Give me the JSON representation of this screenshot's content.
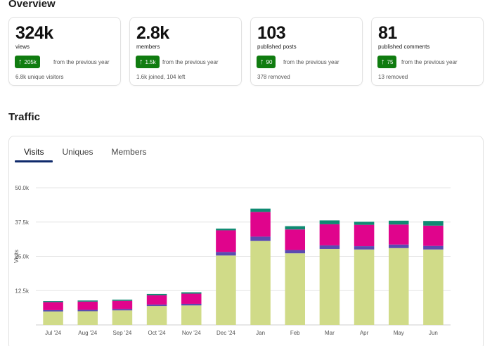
{
  "overview": {
    "title": "Overview",
    "cards": [
      {
        "value": "324k",
        "label": "views",
        "badge": "205k",
        "trend_text": "from the previous year",
        "sub": "6.8k unique visitors"
      },
      {
        "value": "2.8k",
        "label": "members",
        "badge": "1.5k",
        "trend_text": "from the previous year",
        "sub": "1.6k joined, 104 left"
      },
      {
        "value": "103",
        "label": "published posts",
        "badge": "90",
        "trend_text": "from the previous year",
        "sub": "378 removed"
      },
      {
        "value": "81",
        "label": "published comments",
        "badge": "75",
        "trend_text": "from the previous year",
        "sub": "13 removed"
      }
    ],
    "badge_arrow_icon": "arrow-up-icon",
    "badge_color": "#107c10"
  },
  "traffic": {
    "title": "Traffic",
    "tabs": [
      "Visits",
      "Uniques",
      "Members"
    ],
    "active_tab": "Visits"
  },
  "chart_data": {
    "type": "bar",
    "stacked": true,
    "ylabel": "Visits",
    "ylim": [
      0,
      50000
    ],
    "yticks": [
      12500,
      25000,
      37500,
      50000
    ],
    "ytick_labels": [
      "12.5k",
      "25.0k",
      "37.5k",
      "50.0k"
    ],
    "categories": [
      "Jul '24",
      "Aug '24",
      "Sep '24",
      "Oct '24",
      "Nov '24",
      "Dec '24",
      "Jan",
      "Feb",
      "Mar",
      "Apr",
      "May",
      "Jun"
    ],
    "series": [
      {
        "name": "series-1",
        "color": "#d0db88",
        "values": [
          4900,
          5000,
          5300,
          6900,
          7100,
          25300,
          30600,
          26100,
          27700,
          27500,
          28000,
          27500
        ]
      },
      {
        "name": "series-2",
        "color": "#5a4bb0",
        "values": [
          500,
          500,
          500,
          500,
          600,
          1300,
          1600,
          1200,
          1300,
          1200,
          1300,
          1300
        ]
      },
      {
        "name": "series-3",
        "color": "#e0048c",
        "values": [
          2900,
          3000,
          3000,
          3400,
          3700,
          7900,
          9000,
          7500,
          7700,
          7800,
          7300,
          7400
        ]
      },
      {
        "name": "series-4",
        "color": "#0f8a72",
        "values": [
          400,
          400,
          400,
          500,
          500,
          600,
          1200,
          1200,
          1400,
          1100,
          1400,
          1700
        ]
      }
    ]
  }
}
